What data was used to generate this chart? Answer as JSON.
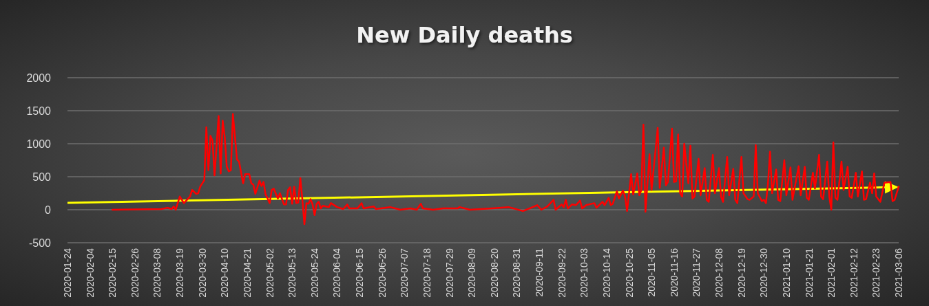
{
  "chart_data": {
    "type": "line",
    "title": "New Daily deaths",
    "xlim": [
      "2020-01-24",
      "2021-03-06"
    ],
    "xticks": [
      "2020-01-24",
      "2020-02-04",
      "2020-02-15",
      "2020-02-26",
      "2020-03-08",
      "2020-03-19",
      "2020-03-30",
      "2020-04-10",
      "2020-04-21",
      "2020-05-02",
      "2020-05-13",
      "2020-05-24",
      "2020-06-04",
      "2020-06-15",
      "2020-06-26",
      "2020-07-07",
      "2020-07-18",
      "2020-07-29",
      "2020-08-09",
      "2020-08-20",
      "2020-08-31",
      "2020-09-11",
      "2020-09-22",
      "2020-10-03",
      "2020-10-14",
      "2020-10-25",
      "2020-11-05",
      "2020-11-16",
      "2020-11-27",
      "2020-12-08",
      "2020-12-19",
      "2020-12-30",
      "2021-01-10",
      "2021-01-21",
      "2021-02-01",
      "2021-02-12",
      "2021-02-23",
      "2021-03-06"
    ],
    "ylim": [
      -500,
      2000
    ],
    "yticks": [
      -500,
      0,
      500,
      1000,
      1500,
      2000
    ],
    "grid": "y",
    "marker": "none",
    "line_style": "solid",
    "series": [
      {
        "color": "#ff0000",
        "x": [
          "2020-02-15",
          "2020-03-10",
          "2020-03-13",
          "2020-03-15",
          "2020-03-16",
          "2020-03-17",
          "2020-03-19",
          "2020-03-21",
          "2020-03-24",
          "2020-03-25",
          "2020-03-27",
          "2020-03-28",
          "2020-03-29",
          "2020-03-31",
          "2020-04-01",
          "2020-04-02",
          "2020-04-03",
          "2020-04-04",
          "2020-04-05",
          "2020-04-07",
          "2020-04-08",
          "2020-04-09",
          "2020-04-10",
          "2020-04-11",
          "2020-04-12",
          "2020-04-13",
          "2020-04-14",
          "2020-04-16",
          "2020-04-17",
          "2020-04-19",
          "2020-04-20",
          "2020-04-22",
          "2020-04-23",
          "2020-04-24",
          "2020-04-25",
          "2020-04-27",
          "2020-04-28",
          "2020-04-29",
          "2020-04-30",
          "2020-05-01",
          "2020-05-02",
          "2020-05-03",
          "2020-05-04",
          "2020-05-06",
          "2020-05-07",
          "2020-05-09",
          "2020-05-10",
          "2020-05-11",
          "2020-05-12",
          "2020-05-13",
          "2020-05-14",
          "2020-05-15",
          "2020-05-16",
          "2020-05-17",
          "2020-05-18",
          "2020-05-19",
          "2020-05-20",
          "2020-05-21",
          "2020-05-22",
          "2020-05-23",
          "2020-05-24",
          "2020-05-25",
          "2020-05-26",
          "2020-05-27",
          "2020-05-28",
          "2020-05-31",
          "2020-06-01",
          "2020-06-04",
          "2020-06-07",
          "2020-06-09",
          "2020-06-10",
          "2020-06-14",
          "2020-06-16",
          "2020-06-17",
          "2020-06-22",
          "2020-06-23",
          "2020-06-30",
          "2020-07-05",
          "2020-07-10",
          "2020-07-13",
          "2020-07-15",
          "2020-07-16",
          "2020-07-21",
          "2020-07-26",
          "2020-08-02",
          "2020-08-03",
          "2020-08-08",
          "2020-08-19",
          "2020-08-27",
          "2020-09-03",
          "2020-09-07",
          "2020-09-10",
          "2020-09-12",
          "2020-09-15",
          "2020-09-18",
          "2020-09-19",
          "2020-09-22",
          "2020-09-23",
          "2020-09-24",
          "2020-09-25",
          "2020-09-27",
          "2020-09-29",
          "2020-10-01",
          "2020-10-02",
          "2020-10-04",
          "2020-10-08",
          "2020-10-09",
          "2020-10-12",
          "2020-10-13",
          "2020-10-15",
          "2020-10-16",
          "2020-10-17",
          "2020-10-19",
          "2020-10-20",
          "2020-10-22",
          "2020-10-23",
          "2020-10-24",
          "2020-10-26",
          "2020-10-27",
          "2020-10-29",
          "2020-10-30",
          "2020-10-31",
          "2020-11-01",
          "2020-11-02",
          "2020-11-04",
          "2020-11-05",
          "2020-11-08",
          "2020-11-09",
          "2020-11-11",
          "2020-11-12",
          "2020-11-13",
          "2020-11-15",
          "2020-11-16",
          "2020-11-17",
          "2020-11-18",
          "2020-11-19",
          "2020-11-20",
          "2020-11-21",
          "2020-11-23",
          "2020-11-24",
          "2020-11-25",
          "2020-11-26",
          "2020-11-28",
          "2020-11-29",
          "2020-12-01",
          "2020-12-02",
          "2020-12-03",
          "2020-12-05",
          "2020-12-06",
          "2020-12-08",
          "2020-12-09",
          "2020-12-10",
          "2020-12-12",
          "2020-12-13",
          "2020-12-15",
          "2020-12-16",
          "2020-12-17",
          "2020-12-19",
          "2020-12-20",
          "2020-12-22",
          "2020-12-23",
          "2020-12-25",
          "2020-12-26",
          "2020-12-27",
          "2020-12-29",
          "2020-12-30",
          "2020-12-31",
          "2021-01-01",
          "2021-01-02",
          "2021-01-03",
          "2021-01-05",
          "2021-01-06",
          "2021-01-07",
          "2021-01-09",
          "2021-01-10",
          "2021-01-12",
          "2021-01-13",
          "2021-01-16",
          "2021-01-17",
          "2021-01-19",
          "2021-01-20",
          "2021-01-21",
          "2021-01-23",
          "2021-01-24",
          "2021-01-26",
          "2021-01-27",
          "2021-01-28",
          "2021-01-30",
          "2021-01-31",
          "2021-02-01",
          "2021-02-02",
          "2021-02-03",
          "2021-02-04",
          "2021-02-06",
          "2021-02-07",
          "2021-02-09",
          "2021-02-10",
          "2021-02-11",
          "2021-02-13",
          "2021-02-14",
          "2021-02-16",
          "2021-02-17",
          "2021-02-18",
          "2021-02-20",
          "2021-02-21",
          "2021-02-22",
          "2021-02-23",
          "2021-02-25",
          "2021-02-27",
          "2021-03-02",
          "2021-03-03",
          "2021-03-04",
          "2021-03-06"
        ],
        "values": [
          0,
          10,
          30,
          10,
          50,
          0,
          200,
          100,
          200,
          300,
          240,
          250,
          350,
          450,
          1250,
          600,
          1120,
          1050,
          520,
          1420,
          550,
          1350,
          1100,
          650,
          580,
          600,
          1450,
          760,
          730,
          400,
          540,
          540,
          400,
          380,
          240,
          440,
          360,
          420,
          230,
          170,
          100,
          300,
          320,
          170,
          250,
          80,
          80,
          300,
          340,
          90,
          350,
          100,
          110,
          480,
          160,
          -220,
          100,
          90,
          160,
          80,
          -80,
          90,
          120,
          20,
          60,
          40,
          100,
          40,
          10,
          80,
          20,
          20,
          100,
          20,
          50,
          10,
          40,
          0,
          20,
          0,
          90,
          20,
          0,
          20,
          20,
          40,
          0,
          20,
          40,
          -20,
          30,
          70,
          0,
          50,
          150,
          0,
          80,
          40,
          150,
          20,
          80,
          70,
          140,
          20,
          70,
          100,
          30,
          120,
          70,
          180,
          70,
          90,
          280,
          170,
          290,
          200,
          -20,
          540,
          230,
          550,
          220,
          300,
          1290,
          -30,
          840,
          300,
          1240,
          330,
          940,
          370,
          420,
          1230,
          420,
          430,
          1140,
          250,
          200,
          1000,
          400,
          970,
          170,
          200,
          770,
          220,
          630,
          150,
          120,
          830,
          250,
          630,
          200,
          120,
          800,
          220,
          620,
          150,
          100,
          800,
          250,
          160,
          150,
          200,
          980,
          250,
          130,
          150,
          100,
          400,
          880,
          250,
          610,
          150,
          130,
          750,
          220,
          640,
          150,
          660,
          220,
          650,
          180,
          150,
          560,
          320,
          830,
          200,
          160,
          730,
          200,
          0,
          1020,
          180,
          150,
          730,
          300,
          650,
          200,
          180,
          560,
          200,
          580,
          150,
          160,
          410,
          250,
          550,
          200,
          120,
          410,
          420,
          130,
          150,
          350
        ]
      }
    ]
  }
}
